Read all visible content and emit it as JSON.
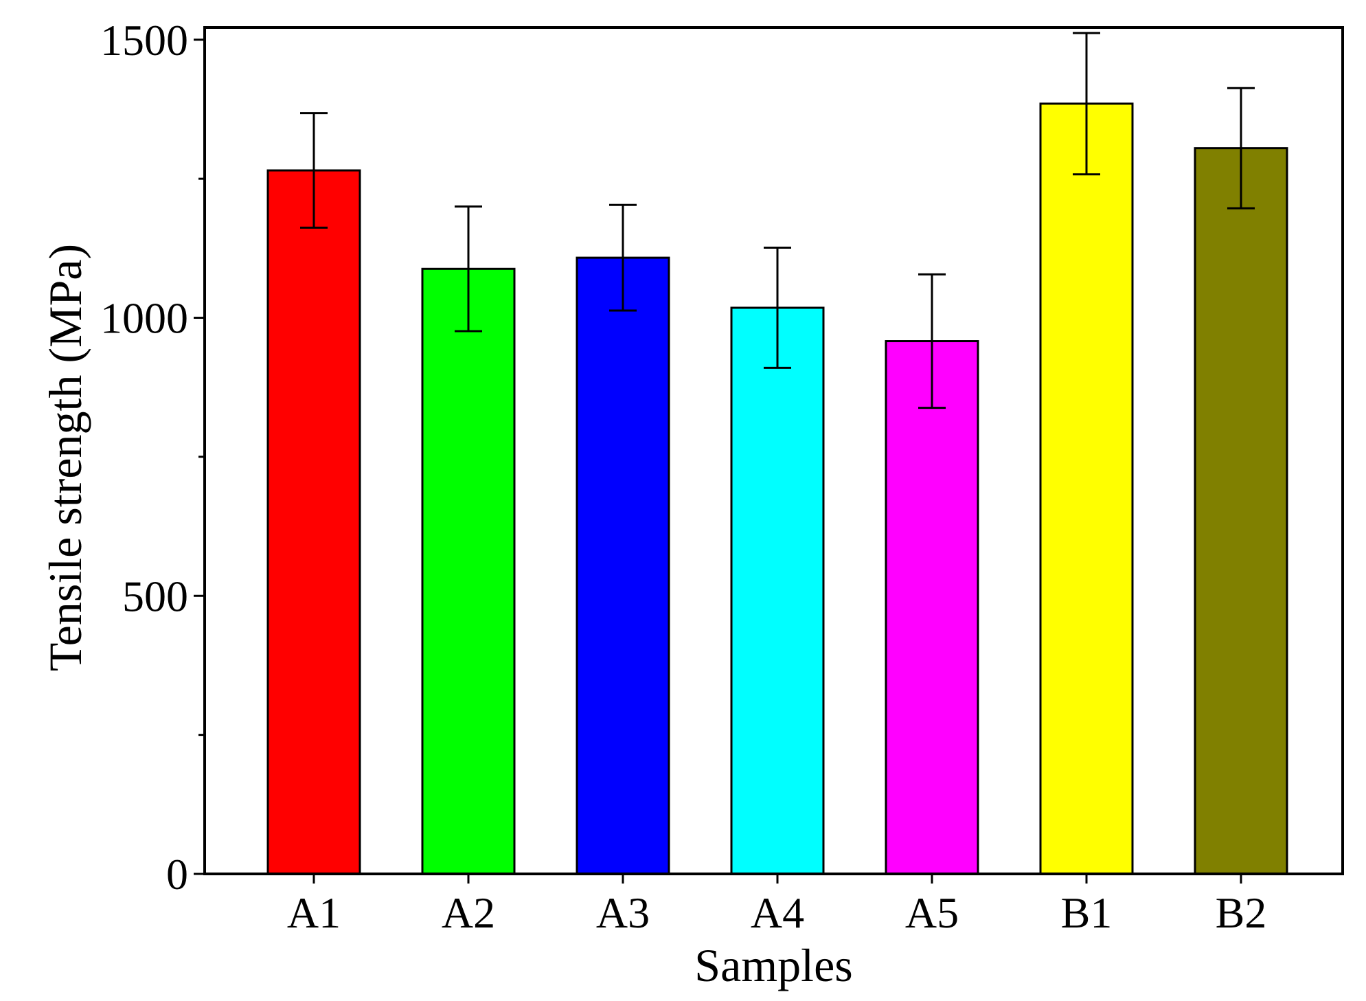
{
  "chart_data": {
    "type": "bar",
    "title": "",
    "xlabel": "Samples",
    "ylabel": "Tensile strength (MPa)",
    "ylim": [
      0,
      1500
    ],
    "yticks": [
      0,
      500,
      1000,
      1500
    ],
    "grid": false,
    "categories": [
      "A1",
      "A2",
      "A3",
      "A4",
      "A5",
      "B1",
      "B2"
    ],
    "values": [
      1265,
      1088,
      1108,
      1018,
      958,
      1385,
      1305
    ],
    "errors": [
      103,
      112,
      95,
      108,
      120,
      127,
      108
    ],
    "colors": [
      "#ff0000",
      "#00ff00",
      "#0000ff",
      "#00ffff",
      "#ff00ff",
      "#ffff00",
      "#808000"
    ]
  }
}
